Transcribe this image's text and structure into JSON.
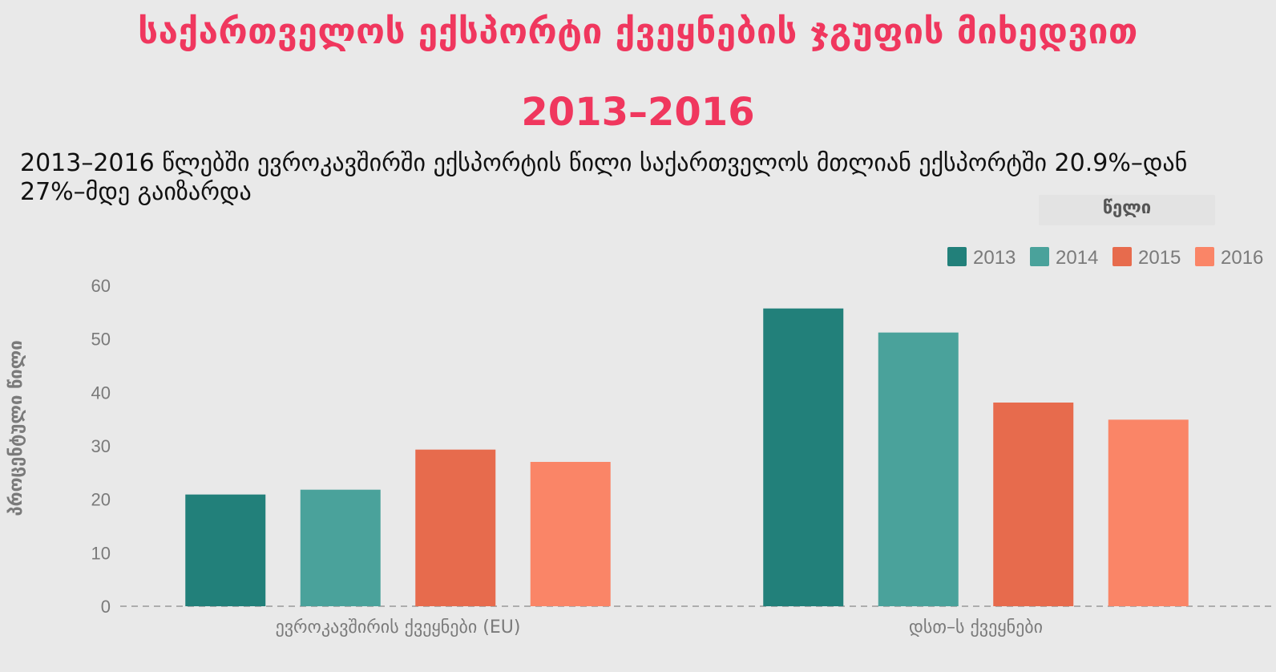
{
  "title_line1": "საქართველოს ექსპორტი ქვეყნების ჯგუფის მიხედვით",
  "title_line2": "2013–2016",
  "subtitle": "2013–2016 წლებში ევროკავშირში ექსპორტის წილი საქართველოს მთლიან ექსპორტში 20.9%–დან 27%–მდე გაიზარდა",
  "legend_title": "წელი",
  "colors": {
    "title": "#f0375e",
    "series": [
      "#22807a",
      "#4aa29b",
      "#e76b4d",
      "#fa8567"
    ]
  },
  "chart_data": {
    "type": "bar",
    "categories": [
      "ევროკავშირის ქვეყნები (EU)",
      "დსთ–ს ქვეყნები"
    ],
    "series": [
      {
        "name": "2013",
        "values": [
          20.9,
          55.7
        ]
      },
      {
        "name": "2014",
        "values": [
          21.8,
          51.2
        ]
      },
      {
        "name": "2015",
        "values": [
          29.3,
          38.1
        ]
      },
      {
        "name": "2016",
        "values": [
          27.0,
          34.9
        ]
      }
    ],
    "ylabel": "პროცენტული წილი",
    "ylim": [
      0,
      60
    ],
    "yticks": [
      0,
      10,
      20,
      30,
      40,
      50,
      60
    ],
    "legend_position": "top-right",
    "baseline_dashed": true
  }
}
